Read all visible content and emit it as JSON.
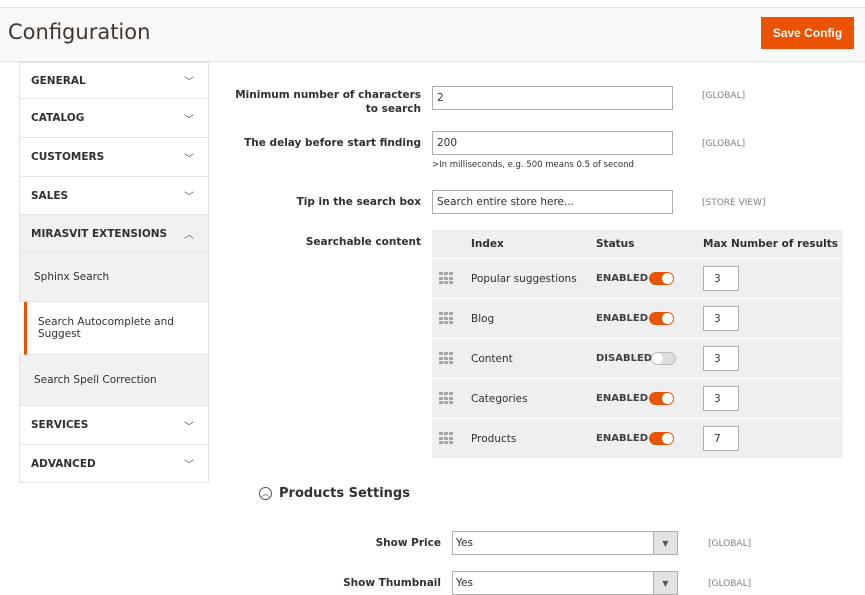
{
  "header": {
    "title": "Configuration",
    "save_label": "Save Config"
  },
  "sidebar": {
    "items": [
      {
        "label": "GENERAL",
        "chevron": "chevron-down"
      },
      {
        "label": "CATALOG",
        "chevron": "chevron-down"
      },
      {
        "label": "CUSTOMERS",
        "chevron": "chevron-down"
      },
      {
        "label": "SALES",
        "chevron": "chevron-down"
      },
      {
        "label": "MIRASVIT EXTENSIONS",
        "chevron": "chevron-up"
      },
      {
        "label": "SERVICES",
        "chevron": "chevron-down"
      },
      {
        "label": "ADVANCED",
        "chevron": "chevron-down"
      }
    ],
    "subitems": [
      {
        "label": "Sphinx Search"
      },
      {
        "label": "Search Autocomplete and Suggest",
        "active": true
      },
      {
        "label": "Search Spell Correction"
      }
    ]
  },
  "form": {
    "min_chars": {
      "label": "Minimum number of characters to search",
      "value": "2",
      "scope": "[GLOBAL]"
    },
    "delay": {
      "label": "The delay before start finding",
      "value": "200",
      "note": ">In milliseconds, e.g. 500 means 0.5 of second",
      "scope": "[GLOBAL]"
    },
    "tip": {
      "label": "Tip in the search box",
      "value": "Search entire store here...",
      "scope": "[STORE VIEW]"
    },
    "searchable": {
      "label": "Searchable content",
      "columns": [
        "Index",
        "Status",
        "Max Number of results"
      ],
      "rows": [
        {
          "index": "Popular suggestions",
          "status": "ENABLED",
          "enabled": true,
          "max": "3"
        },
        {
          "index": "Blog",
          "status": "ENABLED",
          "enabled": true,
          "max": "3"
        },
        {
          "index": "Content",
          "status": "DISABLED",
          "enabled": false,
          "max": "3"
        },
        {
          "index": "Categories",
          "status": "ENABLED",
          "enabled": true,
          "max": "3"
        },
        {
          "index": "Products",
          "status": "ENABLED",
          "enabled": true,
          "max": "7"
        }
      ]
    }
  },
  "products_settings": {
    "title": "Products Settings",
    "show_price": {
      "label": "Show Price",
      "value": "Yes",
      "scope": "[GLOBAL]"
    },
    "show_thumbnail": {
      "label": "Show Thumbnail",
      "value": "Yes",
      "scope": "[GLOBAL]"
    }
  },
  "colors": {
    "accent": "#eb5202"
  }
}
